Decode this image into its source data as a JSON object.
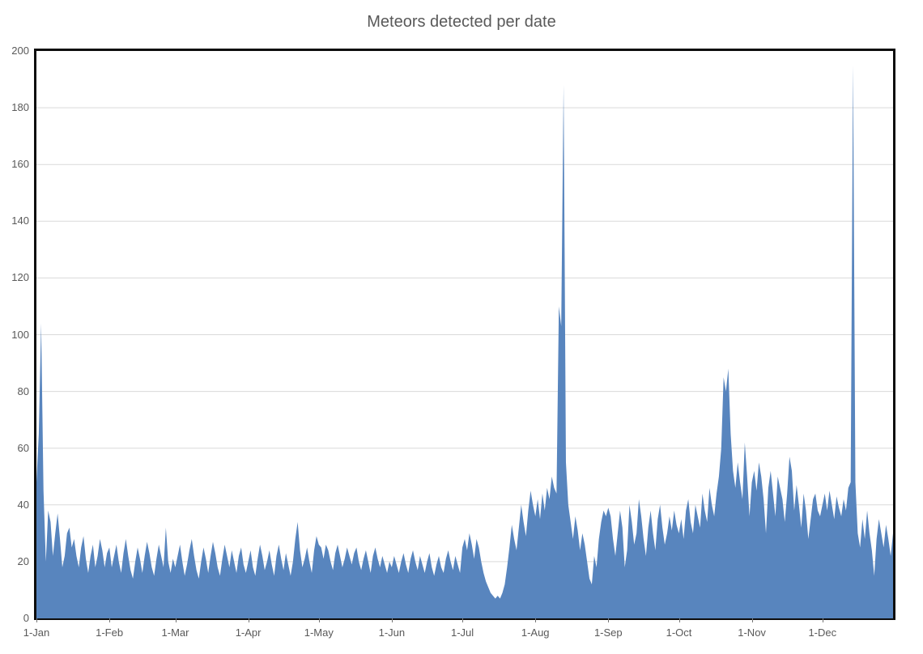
{
  "chart_data": {
    "type": "area",
    "title": "Meteors detected per date",
    "xlabel": "",
    "ylabel": "",
    "x_labels": [
      "1-Jan",
      "1-Feb",
      "1-Mar",
      "1-Apr",
      "1-May",
      "1-Jun",
      "1-Jul",
      "1-Aug",
      "1-Sep",
      "1-Oct",
      "1-Nov",
      "1-Dec"
    ],
    "x_label_days": [
      1,
      32,
      60,
      91,
      121,
      152,
      182,
      213,
      244,
      274,
      305,
      335
    ],
    "days": 365,
    "ylim": [
      0,
      200
    ],
    "y_tick_step": 20,
    "grid": "horizontal",
    "legend": "none",
    "series": [
      {
        "name": "Meteors detected",
        "values": [
          48,
          65,
          104,
          45,
          20,
          38,
          34,
          22,
          30,
          37,
          28,
          18,
          22,
          30,
          32,
          25,
          28,
          22,
          18,
          25,
          29,
          21,
          16,
          22,
          26,
          18,
          22,
          28,
          24,
          18,
          23,
          25,
          18,
          22,
          26,
          20,
          16,
          23,
          28,
          22,
          17,
          14,
          20,
          25,
          21,
          16,
          22,
          27,
          23,
          18,
          15,
          21,
          26,
          22,
          18,
          32,
          20,
          16,
          21,
          18,
          22,
          26,
          20,
          15,
          19,
          24,
          28,
          22,
          17,
          14,
          20,
          25,
          21,
          16,
          22,
          27,
          23,
          18,
          15,
          21,
          26,
          22,
          18,
          24,
          20,
          16,
          22,
          25,
          19,
          16,
          20,
          24,
          18,
          15,
          21,
          26,
          22,
          17,
          20,
          24,
          19,
          15,
          22,
          26,
          21,
          17,
          23,
          19,
          15,
          20,
          28,
          34,
          24,
          18,
          21,
          25,
          20,
          16,
          24,
          29,
          26,
          25,
          21,
          26,
          24,
          20,
          17,
          23,
          26,
          22,
          18,
          21,
          25,
          22,
          19,
          23,
          25,
          20,
          17,
          21,
          24,
          20,
          16,
          22,
          25,
          21,
          18,
          22,
          19,
          16,
          20,
          18,
          22,
          19,
          16,
          20,
          23,
          19,
          16,
          21,
          24,
          20,
          17,
          22,
          19,
          16,
          20,
          23,
          18,
          15,
          19,
          22,
          18,
          16,
          21,
          24,
          20,
          17,
          22,
          19,
          16,
          25,
          28,
          24,
          30,
          26,
          21,
          28,
          25,
          20,
          16,
          13,
          11,
          9,
          8,
          7,
          8,
          7,
          9,
          12,
          18,
          25,
          33,
          28,
          24,
          32,
          40,
          34,
          29,
          38,
          45,
          40,
          36,
          42,
          35,
          44,
          38,
          46,
          42,
          50,
          46,
          44,
          110,
          103,
          188,
          55,
          40,
          34,
          28,
          36,
          31,
          24,
          30,
          26,
          20,
          14,
          12,
          22,
          18,
          28,
          34,
          38,
          36,
          39,
          36,
          28,
          22,
          30,
          38,
          32,
          18,
          24,
          40,
          34,
          26,
          30,
          42,
          36,
          28,
          22,
          32,
          38,
          30,
          24,
          35,
          40,
          32,
          26,
          30,
          36,
          31,
          38,
          33,
          30,
          35,
          28,
          38,
          42,
          34,
          30,
          40,
          36,
          32,
          44,
          38,
          34,
          46,
          40,
          36,
          44,
          50,
          60,
          85,
          80,
          88,
          65,
          52,
          46,
          55,
          48,
          42,
          62,
          50,
          36,
          48,
          52,
          45,
          55,
          50,
          42,
          30,
          46,
          52,
          44,
          36,
          50,
          46,
          42,
          34,
          44,
          57,
          52,
          38,
          47,
          40,
          32,
          44,
          38,
          28,
          35,
          42,
          44,
          38,
          36,
          40,
          44,
          38,
          45,
          40,
          35,
          43,
          39,
          36,
          42,
          38,
          46,
          48,
          195,
          48,
          30,
          25,
          35,
          28,
          38,
          30,
          24,
          15,
          28,
          35,
          30,
          25,
          33,
          28,
          22,
          30
        ]
      }
    ],
    "colors": {
      "area_fill": "#5885BE",
      "gridline": "#D9D9D9",
      "plot_border": "#0D0D0D",
      "axis_text": "#595959",
      "title_text": "#595959",
      "tick_mark": "#757575"
    }
  }
}
